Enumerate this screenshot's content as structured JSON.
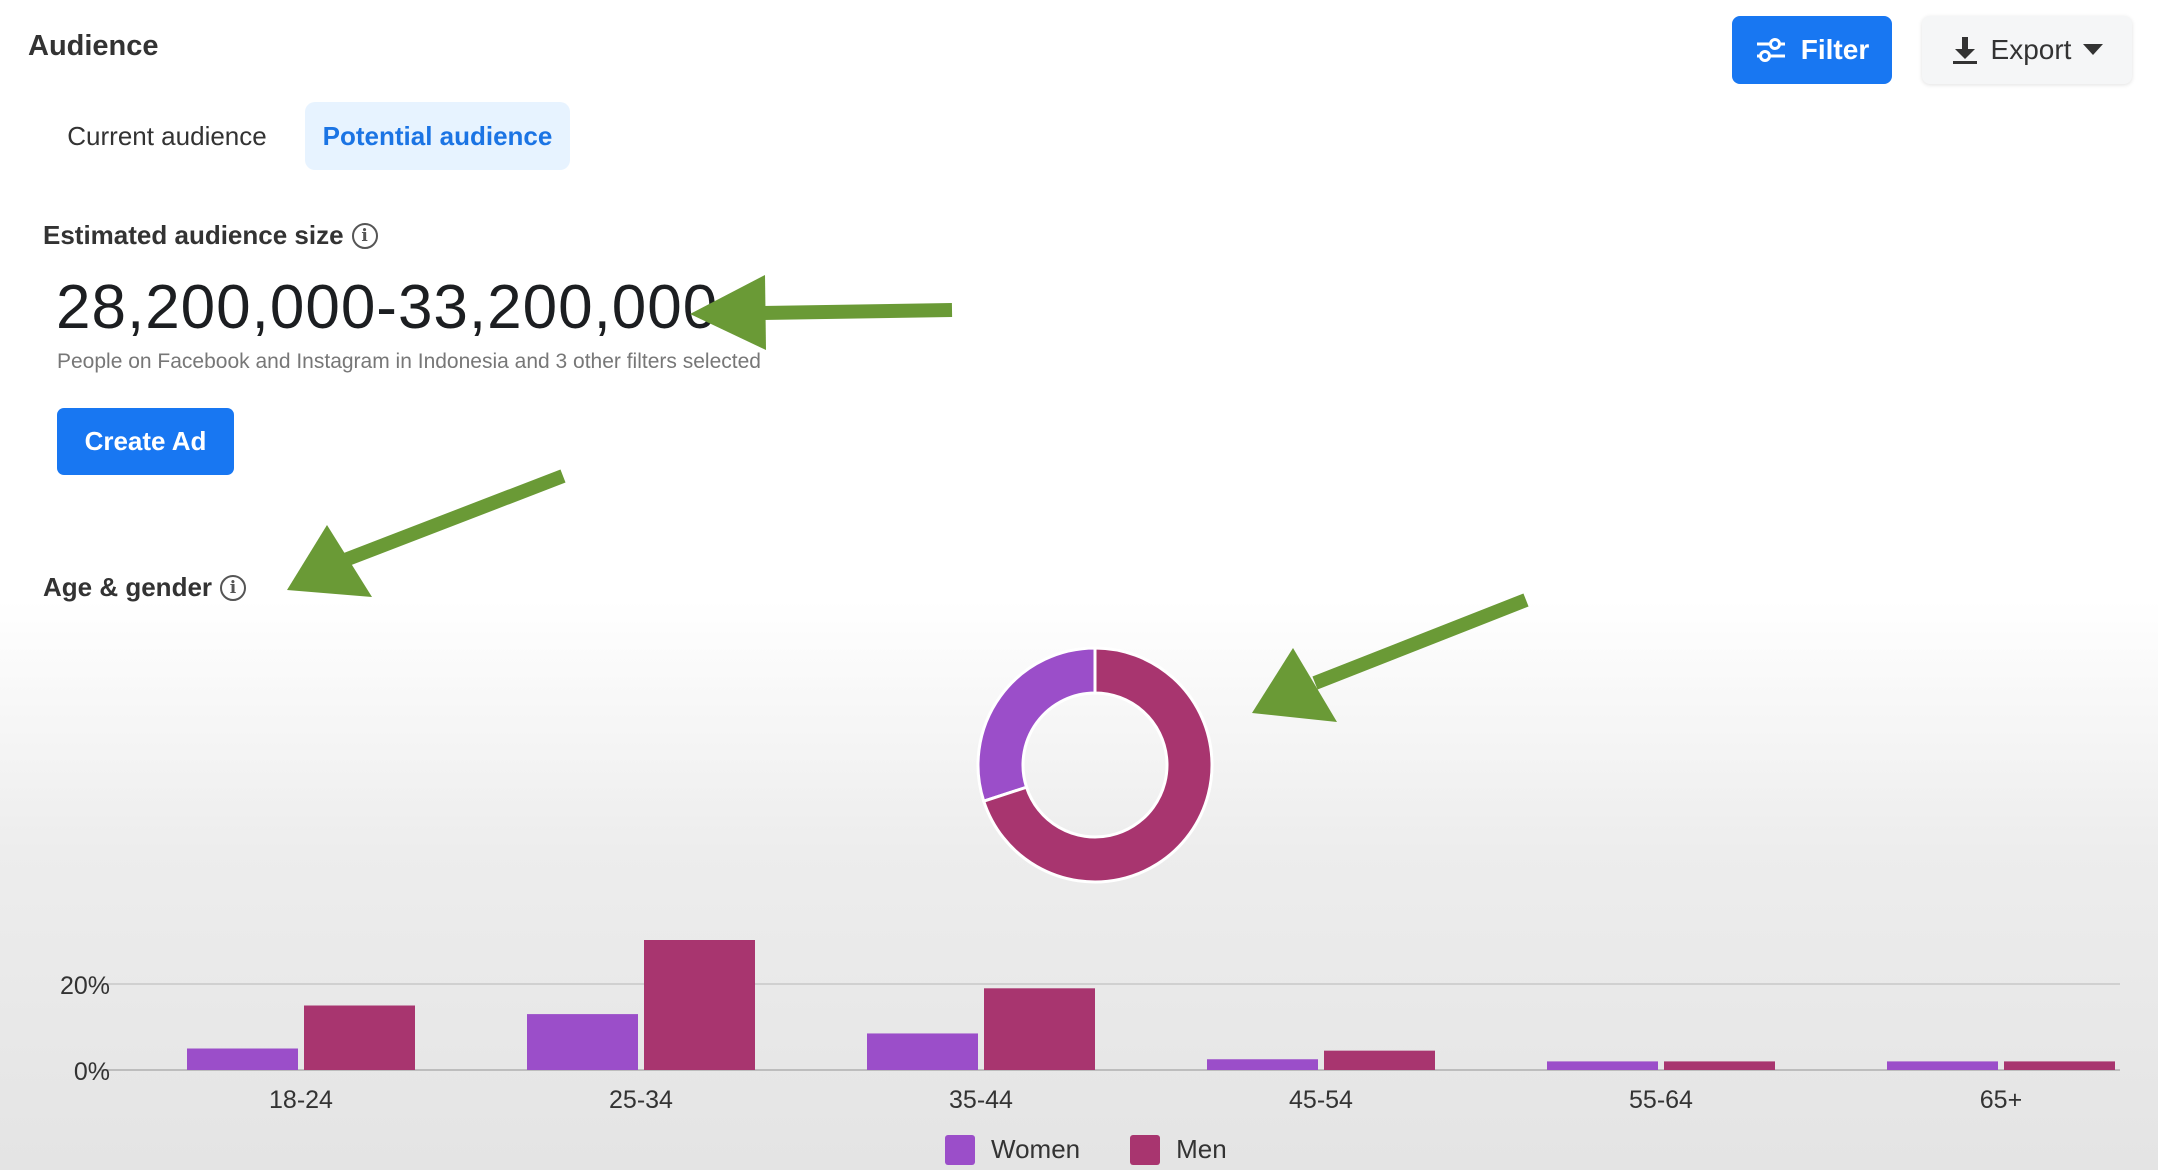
{
  "header": {
    "title": "Audience",
    "filter_label": "Filter",
    "export_label": "Export"
  },
  "tabs": [
    {
      "label": "Current audience",
      "active": false
    },
    {
      "label": "Potential audience",
      "active": true
    }
  ],
  "audience_size": {
    "label": "Estimated audience size",
    "value": "28,200,000-33,200,000",
    "subtitle": "People on Facebook and Instagram in Indonesia and 3 other filters selected",
    "create_ad_label": "Create Ad"
  },
  "age_gender": {
    "label": "Age & gender"
  },
  "colors": {
    "accent": "#1877f2",
    "women": "#9b4ec9",
    "men": "#a8356f",
    "annotation_arrow": "#6a9a36"
  },
  "icons": [
    "filter-sliders-icon",
    "download-icon",
    "caret-down-icon",
    "info-icon"
  ],
  "chart_data": [
    {
      "type": "pie",
      "subtype": "donut",
      "labels": [
        "Women",
        "Men"
      ],
      "values": [
        30,
        70
      ]
    },
    {
      "type": "bar",
      "categories": [
        "18-24",
        "25-34",
        "35-44",
        "45-54",
        "55-64",
        "65+"
      ],
      "series": [
        {
          "name": "Women",
          "values": [
            5,
            13,
            8.5,
            2.5,
            2,
            2
          ]
        },
        {
          "name": "Men",
          "values": [
            15,
            32,
            19,
            4.5,
            2,
            2
          ]
        }
      ],
      "yticks": [
        "0%",
        "20%"
      ],
      "ylim": [
        0,
        36
      ],
      "grid": true,
      "legend": "bottom-center"
    }
  ]
}
